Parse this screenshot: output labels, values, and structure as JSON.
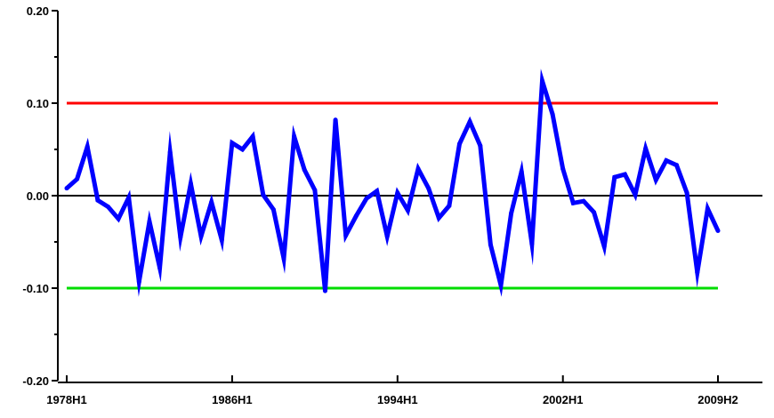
{
  "chart_data": {
    "type": "line",
    "title": "",
    "xlabel": "",
    "ylabel": "",
    "ylim": [
      -0.2,
      0.2
    ],
    "grid": false,
    "legend": "none",
    "y_ticks": [
      {
        "value": 0.2,
        "label": "0.20"
      },
      {
        "value": 0.1,
        "label": "0.10"
      },
      {
        "value": 0.0,
        "label": "0.00"
      },
      {
        "value": -0.1,
        "label": "-0.10"
      },
      {
        "value": -0.2,
        "label": "-0.20"
      }
    ],
    "x_tick_labels": [
      {
        "index": 0,
        "label": "1978H1"
      },
      {
        "index": 16,
        "label": "1986H1"
      },
      {
        "index": 32,
        "label": "1994H1"
      },
      {
        "index": 48,
        "label": "2002H1"
      },
      {
        "index": 63,
        "label": "2009H2"
      }
    ],
    "reference_lines": [
      {
        "value": 0.1,
        "color": "#ff0000"
      },
      {
        "value": 0.0,
        "color": "#000000"
      },
      {
        "value": -0.1,
        "color": "#00dd00"
      }
    ],
    "series": [
      {
        "color": "#0000ff",
        "values": [
          0.008,
          0.018,
          0.053,
          -0.005,
          -0.012,
          -0.025,
          -0.002,
          -0.093,
          -0.028,
          -0.078,
          0.047,
          -0.045,
          0.013,
          -0.044,
          -0.007,
          -0.048,
          0.057,
          0.05,
          0.064,
          0.001,
          -0.015,
          -0.068,
          0.064,
          0.028,
          0.006,
          -0.103,
          0.082,
          -0.043,
          -0.022,
          -0.003,
          0.005,
          -0.044,
          0.003,
          -0.016,
          0.029,
          0.008,
          -0.024,
          -0.011,
          0.056,
          0.08,
          0.054,
          -0.053,
          -0.097,
          -0.019,
          0.026,
          -0.052,
          0.124,
          0.088,
          0.029,
          -0.008,
          -0.006,
          -0.018,
          -0.055,
          0.02,
          0.023,
          0.001,
          0.051,
          0.017,
          0.038,
          0.033,
          0.003,
          -0.083,
          -0.014,
          -0.038
        ]
      }
    ]
  }
}
